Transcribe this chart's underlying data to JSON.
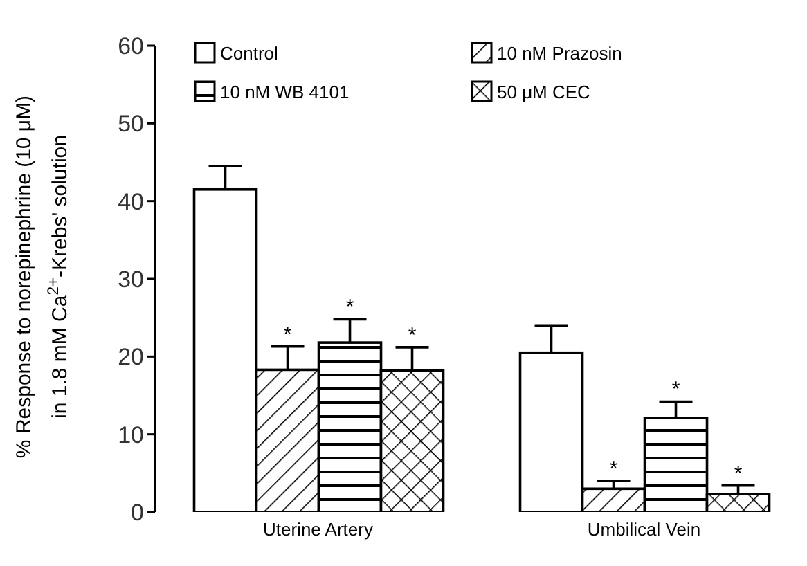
{
  "chart_data": {
    "type": "bar",
    "ylabel": "% Response to norepinephrine (10 μM)\nin 1.8 mM Ca$^{2+}$-Krebs' solution",
    "categories": [
      "Uterine Artery",
      "Umbilical Vein"
    ],
    "series": [
      {
        "name": "Control",
        "color": "#000000",
        "values": [
          41.5,
          20.5
        ],
        "errors": [
          3,
          3.5
        ]
      },
      {
        "name": "10 nM Prazosin",
        "color": "#000000",
        "values": [
          18.3,
          3
        ],
        "errors": [
          3,
          1
        ],
        "value_labels": [
          "*",
          "*"
        ]
      },
      {
        "name": "10 nM WB 4101",
        "color": "#000000",
        "values": [
          21.8,
          12.1
        ],
        "errors": [
          3,
          2.1
        ],
        "value_labels": [
          "*",
          "*"
        ]
      },
      {
        "name": "50 μM CEC",
        "color": "#000000",
        "values": [
          18.2,
          2.3
        ],
        "errors": [
          3,
          1.1
        ],
        "value_labels": [
          "*",
          "*"
        ]
      }
    ],
    "ylim": [
      0,
      60
    ],
    "yticks": [
      0,
      10,
      20,
      30,
      40,
      50,
      60
    ],
    "legend": "top"
  }
}
